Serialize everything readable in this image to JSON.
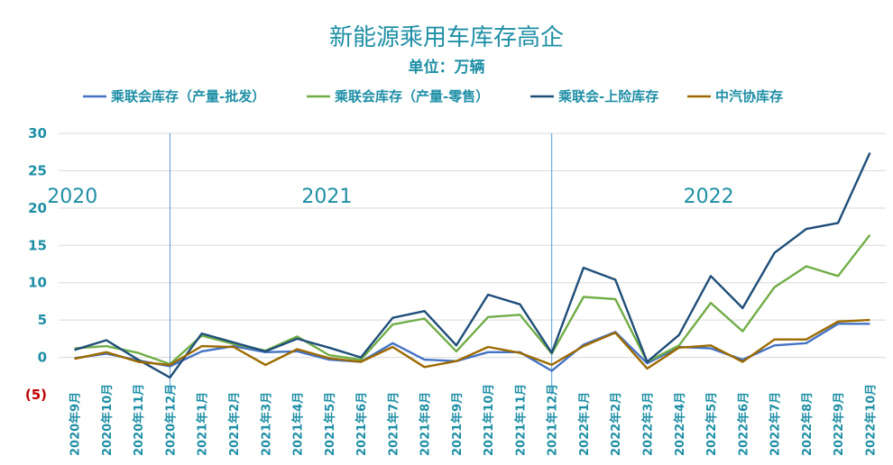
{
  "chart_data": {
    "type": "line",
    "title": "新能源乘用车库存高企",
    "subtitle": "单位：万辆",
    "x": [
      "2020年9月",
      "2020年10月",
      "2020年11月",
      "2020年12月",
      "2021年1月",
      "2021年2月",
      "2021年3月",
      "2021年4月",
      "2021年5月",
      "2021年6月",
      "2021年7月",
      "2021年8月",
      "2021年9月",
      "2021年10月",
      "2021年11月",
      "2021年12月",
      "2022年1月",
      "2022年2月",
      "2022年3月",
      "2022年4月",
      "2022年5月",
      "2022年6月",
      "2022年7月",
      "2022年8月",
      "2022年9月",
      "2022年10月"
    ],
    "ylim": [
      -5,
      30
    ],
    "yticks": [
      30,
      25,
      20,
      15,
      10,
      5,
      0,
      -5
    ],
    "ytick_labels": [
      "30",
      "25",
      "20",
      "15",
      "10",
      "5",
      "0",
      "(5)"
    ],
    "grid": true,
    "legend_position": "top",
    "year_labels": [
      {
        "text": "2020",
        "x_index": 0.5
      },
      {
        "text": "2021",
        "x_index": 8.5
      },
      {
        "text": "2022",
        "x_index": 20.5
      }
    ],
    "dividers_after_index": [
      3,
      15
    ],
    "series": [
      {
        "name": "乘联会库存（产量-批发）",
        "color": "#4472c4",
        "values": [
          -0.1,
          0.5,
          -0.4,
          -1.2,
          0.8,
          1.5,
          0.7,
          0.8,
          -0.3,
          -0.6,
          1.9,
          -0.3,
          -0.5,
          0.7,
          0.7,
          -1.8,
          1.7,
          3.4,
          -0.8,
          1.4,
          1.2,
          -0.3,
          1.6,
          1.9,
          4.5,
          4.5
        ]
      },
      {
        "name": "乘联会库存（产量-零售）",
        "color": "#70ad47",
        "values": [
          1.2,
          1.5,
          0.6,
          -0.9,
          2.9,
          1.8,
          0.9,
          2.8,
          0.3,
          -0.3,
          4.4,
          5.2,
          0.8,
          5.4,
          5.7,
          0.5,
          8.1,
          7.8,
          -0.6,
          1.6,
          7.3,
          3.5,
          9.4,
          12.2,
          10.9,
          16.4
        ]
      },
      {
        "name": "乘联会-上险库存",
        "color": "#1f4e79",
        "values": [
          1.0,
          2.3,
          -0.3,
          -2.7,
          3.2,
          2.0,
          0.8,
          2.5,
          1.3,
          0.0,
          5.3,
          6.2,
          1.6,
          8.4,
          7.1,
          0.6,
          12.0,
          10.4,
          -0.6,
          3.0,
          10.9,
          6.6,
          14.0,
          17.2,
          18.0,
          27.4
        ]
      },
      {
        "name": "中汽协库存",
        "color": "#9c6a00",
        "values": [
          -0.2,
          0.7,
          -0.6,
          -1.0,
          1.5,
          1.4,
          -1.0,
          1.1,
          -0.1,
          -0.6,
          1.4,
          -1.3,
          -0.5,
          1.4,
          0.6,
          -1.0,
          1.5,
          3.3,
          -1.5,
          1.3,
          1.6,
          -0.6,
          2.4,
          2.4,
          4.8,
          5.0
        ]
      }
    ]
  }
}
